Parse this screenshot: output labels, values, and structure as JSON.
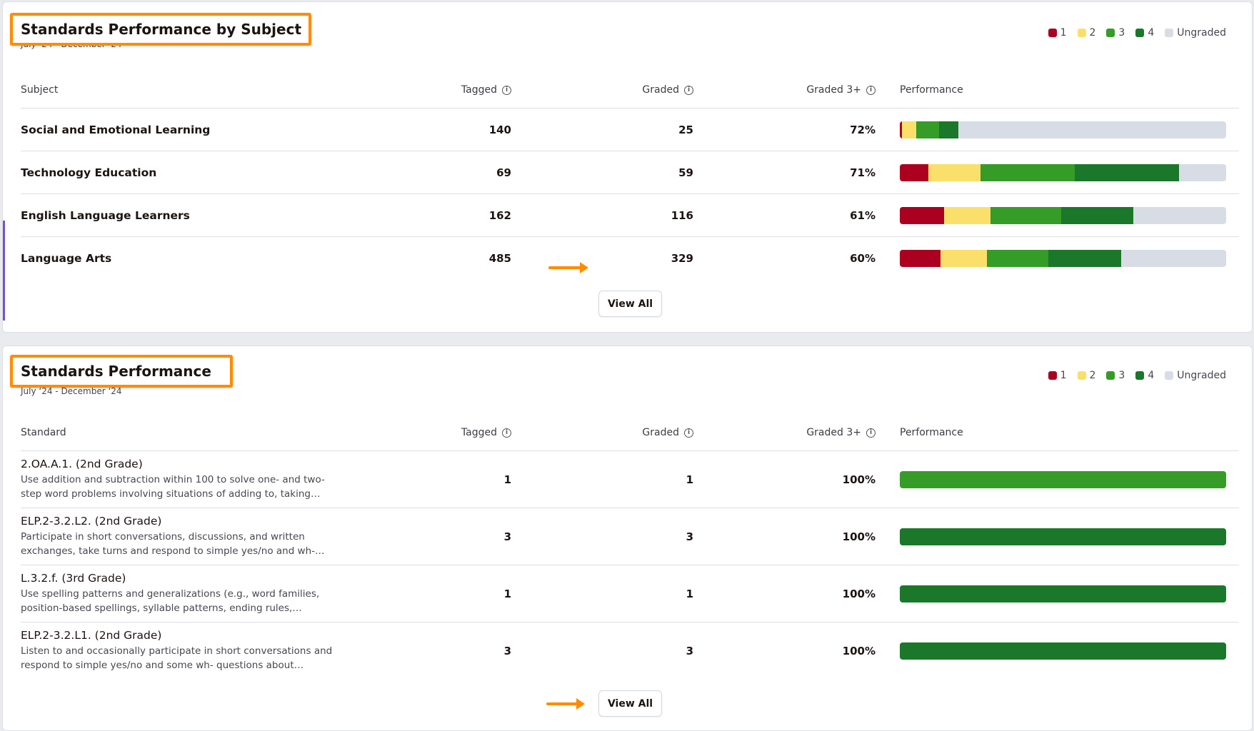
{
  "colors": {
    "level1": "#ab0020",
    "level2": "#fae06b",
    "level3": "#359c28",
    "level4": "#1b772a",
    "ungraded": "#d8dce4",
    "highlight": "#ff8c00"
  },
  "legend": [
    {
      "label": "1",
      "color_key": "level1"
    },
    {
      "label": "2",
      "color_key": "level2"
    },
    {
      "label": "3",
      "color_key": "level3"
    },
    {
      "label": "4",
      "color_key": "level4"
    },
    {
      "label": "Ungraded",
      "color_key": "ungraded"
    }
  ],
  "by_subject": {
    "title": "Standards Performance by Subject",
    "date_range": "July ‘24 - December ‘24",
    "headers": {
      "subject": "Subject",
      "tagged": "Tagged",
      "graded": "Graded",
      "graded3": "Graded 3+",
      "performance": "Performance"
    },
    "rows": [
      {
        "name": "Social and Emotional Learning",
        "tagged": "140",
        "graded": "25",
        "graded3": "72%",
        "levels": [
          1,
          6,
          10,
          8
        ],
        "total": 140
      },
      {
        "name": "Technology Education",
        "tagged": "69",
        "graded": "59",
        "graded3": "71%",
        "levels": [
          6,
          11,
          20,
          22
        ],
        "total": 69
      },
      {
        "name": "English Language Learners",
        "tagged": "162",
        "graded": "116",
        "graded3": "61%",
        "levels": [
          22,
          23,
          35,
          36
        ],
        "total": 162
      },
      {
        "name": "Language Arts",
        "tagged": "485",
        "graded": "329",
        "graded3": "60%",
        "levels": [
          60,
          70,
          91,
          108
        ],
        "total": 485
      }
    ],
    "view_all": "View All"
  },
  "standards": {
    "title": "Standards Performance",
    "date_range": "July ‘24 - December ‘24",
    "headers": {
      "standard": "Standard",
      "tagged": "Tagged",
      "graded": "Graded",
      "graded3": "Graded 3+",
      "performance": "Performance"
    },
    "rows": [
      {
        "code": "2.OA.A.1. (2nd Grade)",
        "desc": "Use addition and subtraction within 100 to solve one- and two-step word problems involving situations of adding to, taking…",
        "tagged": "1",
        "graded": "1",
        "graded3": "100%",
        "levels": [
          0,
          0,
          1,
          0
        ],
        "total": 1
      },
      {
        "code": "ELP.2-3.2.L2. (2nd Grade)",
        "desc": "Participate in short conversations, discussions, and written exchanges, take turns and respond to simple yes/no and wh-…",
        "tagged": "3",
        "graded": "3",
        "graded3": "100%",
        "levels": [
          0,
          0,
          0,
          3
        ],
        "total": 3
      },
      {
        "code": "L.3.2.f. (3rd Grade)",
        "desc": "Use spelling patterns and generalizations (e.g., word families, position-based spellings, syllable patterns, ending rules,…",
        "tagged": "1",
        "graded": "1",
        "graded3": "100%",
        "levels": [
          0,
          0,
          0,
          1
        ],
        "total": 1
      },
      {
        "code": "ELP.2-3.2.L1. (2nd Grade)",
        "desc": "Listen to and occasionally participate in short conversations and respond to simple yes/no and some wh- questions about…",
        "tagged": "3",
        "graded": "3",
        "graded3": "100%",
        "levels": [
          0,
          0,
          0,
          3
        ],
        "total": 3
      }
    ],
    "view_all": "View All"
  }
}
